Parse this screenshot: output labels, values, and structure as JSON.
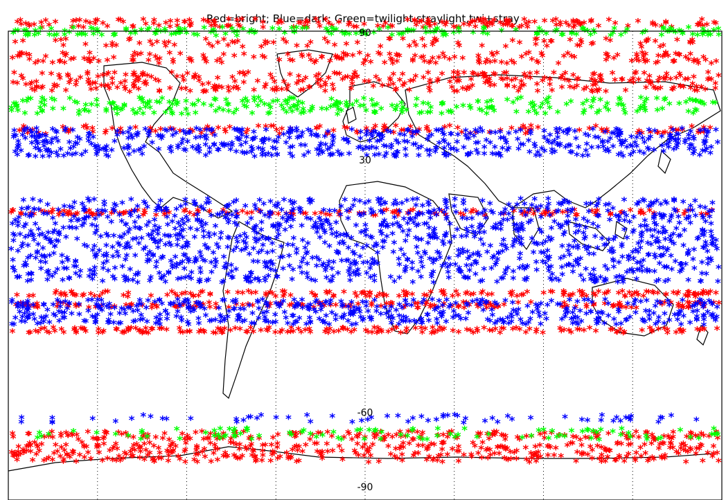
{
  "chart_data": {
    "type": "scatter",
    "title": "Red=bright; Blue=dark; Green=twilight,straylight,twi+stray",
    "xlabel": "",
    "ylabel": "",
    "xlim": [
      -180,
      180
    ],
    "ylim": [
      -90,
      90
    ],
    "grid": true,
    "legend": "none",
    "marker": "*",
    "lat_labels": [
      {
        "lat": 90,
        "text": "90"
      },
      {
        "lat": 30,
        "text": "30"
      },
      {
        "lat": -60,
        "text": "-60"
      },
      {
        "lat": -90,
        "text": "-90"
      }
    ],
    "series": [
      {
        "color": "#ff0000",
        "bands": [
          {
            "lat_min": 78,
            "lat_max": 81,
            "dens": 2.0
          },
          {
            "lat_min": 71,
            "lat_max": 74,
            "dens": 1.0
          },
          {
            "lat_min": 65,
            "lat_max": 69,
            "dens": 1.5
          },
          {
            "lat_min": 55,
            "lat_max": 62,
            "dens": 1.6
          },
          {
            "lat_min": 40,
            "lat_max": 43,
            "dens": 1.4
          },
          {
            "lat_min": 11,
            "lat_max": 13,
            "dens": 1.6
          },
          {
            "lat_min": -18,
            "lat_max": -16,
            "dens": 1.8
          },
          {
            "lat_min": -22,
            "lat_max": -20,
            "dens": 1.8
          },
          {
            "lat_min": -31,
            "lat_max": -29,
            "dens": 2.0
          },
          {
            "lat_min": -69,
            "lat_max": -66,
            "dens": 2.0
          },
          {
            "lat_min": -77,
            "lat_max": -70,
            "dens": 1.8
          }
        ]
      },
      {
        "color": "#0000ff",
        "bands": [
          {
            "lat_min": 32,
            "lat_max": 42,
            "dens": 1.8
          },
          {
            "lat_min": -13,
            "lat_max": 17,
            "dens": 1.4
          },
          {
            "lat_min": -28,
            "lat_max": -19,
            "dens": 1.8
          },
          {
            "lat_min": -63,
            "lat_max": -60,
            "dens": 0.7
          }
        ]
      },
      {
        "color": "#00ff00",
        "bands": [
          {
            "lat_min": 75,
            "lat_max": 78,
            "dens": 2.0
          },
          {
            "lat_min": 47,
            "lat_max": 53,
            "dens": 1.5
          },
          {
            "lat_min": -69,
            "lat_max": -65,
            "dens": 0.8
          }
        ]
      }
    ]
  }
}
